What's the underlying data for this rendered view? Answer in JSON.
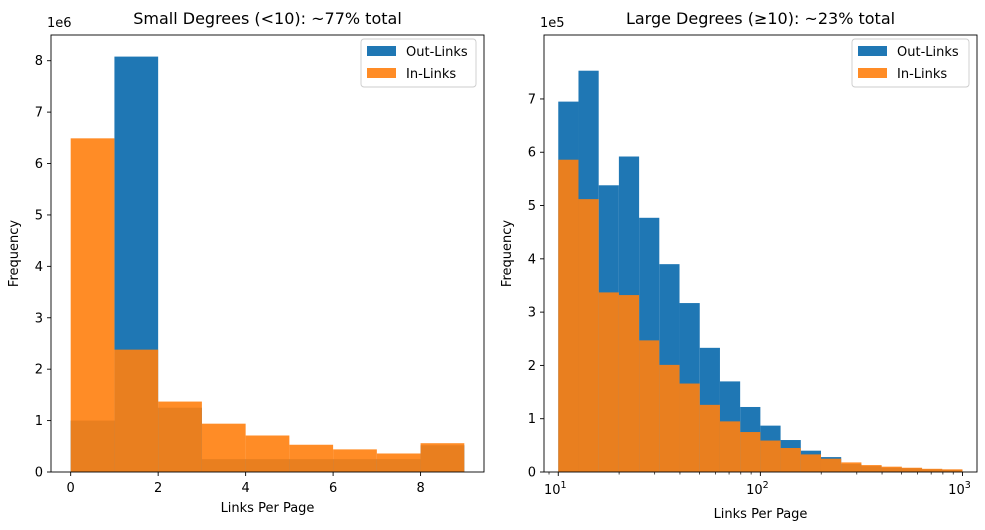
{
  "chart_data": [
    {
      "type": "bar",
      "title": "Small Degrees (<10): ~77% total",
      "xlabel": "Links Per Page",
      "ylabel": "Frequency",
      "y_multiplier_label": "1e6",
      "x_scale": "linear",
      "xlim": [
        -0.45,
        9.45
      ],
      "ylim": [
        0,
        8.5
      ],
      "xticks": [
        0,
        2,
        4,
        6,
        8
      ],
      "yticks": [
        0,
        1,
        2,
        3,
        4,
        5,
        6,
        7,
        8
      ],
      "bin_edges": [
        0,
        1,
        2,
        3,
        4,
        5,
        6,
        7,
        8,
        9
      ],
      "series": [
        {
          "name": "Out-Links",
          "color": "#1f77b4",
          "values": [
            1.0,
            8.08,
            1.25,
            0.25,
            0.25,
            0.25,
            0.25,
            0.25,
            0.52
          ]
        },
        {
          "name": "In-Links",
          "color": "#ff7f0e",
          "values": [
            6.49,
            2.38,
            1.37,
            0.94,
            0.71,
            0.53,
            0.44,
            0.36,
            0.56
          ]
        }
      ],
      "legend_position": "top-right"
    },
    {
      "type": "bar",
      "title": "Large Degrees (≥10): ~23% total",
      "xlabel": "Links Per Page",
      "ylabel": "Frequency",
      "y_multiplier_label": "1e5",
      "x_scale": "log",
      "xlim": [
        8.5,
        1180
      ],
      "ylim": [
        0,
        8.2
      ],
      "xticks": [
        10,
        100,
        1000
      ],
      "xtick_labels": [
        {
          "base": "10",
          "exp": "1"
        },
        {
          "base": "10",
          "exp": "2"
        },
        {
          "base": "10",
          "exp": "3"
        }
      ],
      "yticks": [
        0,
        1,
        2,
        3,
        4,
        5,
        6,
        7
      ],
      "bin_edges": [
        10,
        12.59,
        15.85,
        19.95,
        25.12,
        31.62,
        39.81,
        50.12,
        63.1,
        79.43,
        100,
        125.9,
        158.5,
        199.5,
        251.2,
        316.2,
        398.1,
        501.2,
        631,
        794.3,
        1000
      ],
      "series": [
        {
          "name": "Out-Links",
          "color": "#1f77b4",
          "values": [
            6.95,
            7.53,
            5.38,
            5.92,
            4.77,
            3.9,
            3.17,
            2.33,
            1.7,
            1.22,
            0.87,
            0.6,
            0.4,
            0.28,
            0.15,
            0.11,
            0.08,
            0.07,
            0.05,
            0.04
          ]
        },
        {
          "name": "In-Links",
          "color": "#ff7f0e",
          "values": [
            5.86,
            5.12,
            3.37,
            3.32,
            2.47,
            2.01,
            1.66,
            1.26,
            0.95,
            0.75,
            0.59,
            0.45,
            0.33,
            0.25,
            0.18,
            0.13,
            0.1,
            0.08,
            0.06,
            0.05
          ]
        }
      ],
      "legend_position": "top-right"
    }
  ]
}
